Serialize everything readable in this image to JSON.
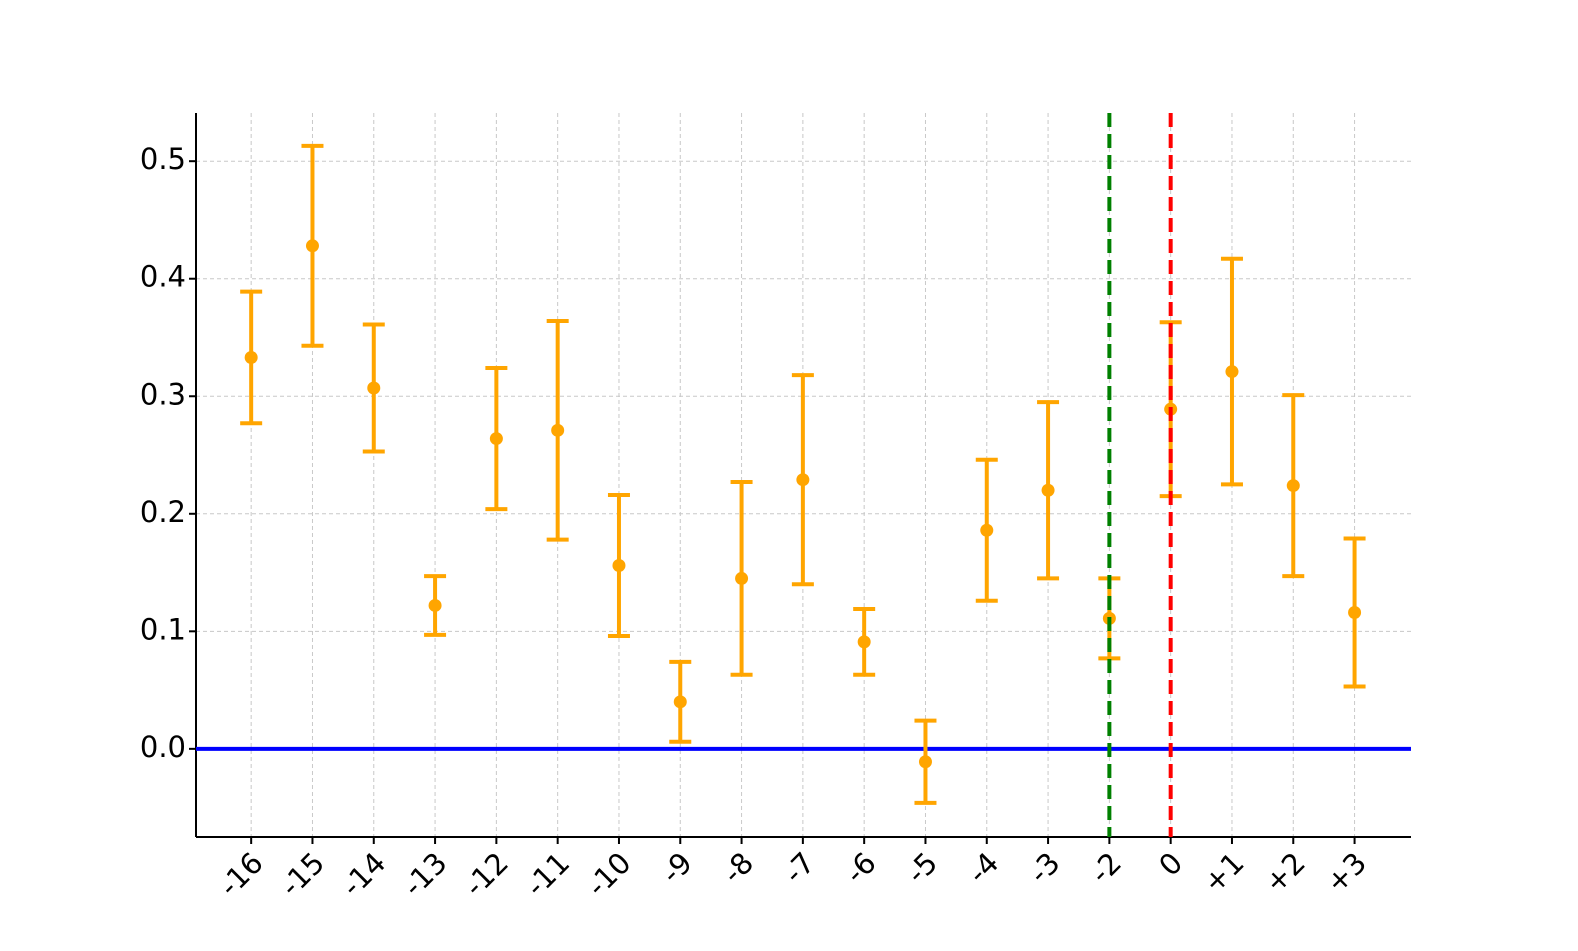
{
  "chart_data": {
    "type": "errorbar",
    "categories": [
      "-16",
      "-15",
      "-14",
      "-13",
      "-12",
      "-11",
      "-10",
      "-9",
      "-8",
      "-7",
      "-6",
      "-5",
      "-4",
      "-3",
      "-2",
      "0",
      "+1",
      "+2",
      "+3"
    ],
    "values": [
      0.333,
      0.428,
      0.307,
      0.122,
      0.264,
      0.271,
      0.156,
      0.04,
      0.145,
      0.229,
      0.091,
      -0.011,
      0.186,
      0.22,
      0.111,
      0.289,
      0.321,
      0.224,
      0.116
    ],
    "errors": [
      0.056,
      0.085,
      0.054,
      0.025,
      0.06,
      0.093,
      0.06,
      0.034,
      0.082,
      0.089,
      0.028,
      0.035,
      0.06,
      0.075,
      0.034,
      0.074,
      0.096,
      0.077,
      0.063
    ],
    "color": "#ffa500",
    "ylim": [
      -0.075,
      0.541
    ],
    "yticks": [
      {
        "value": 0,
        "label": "0.0"
      },
      0.1,
      0.2,
      0.3,
      0.4,
      0.5
    ],
    "grid": true,
    "hlines": [
      {
        "value": 0,
        "color": "#0000ff"
      }
    ],
    "vlines": [
      {
        "index": 14,
        "color": "#008000"
      },
      {
        "index": 15,
        "color": "#ff0000"
      }
    ]
  }
}
